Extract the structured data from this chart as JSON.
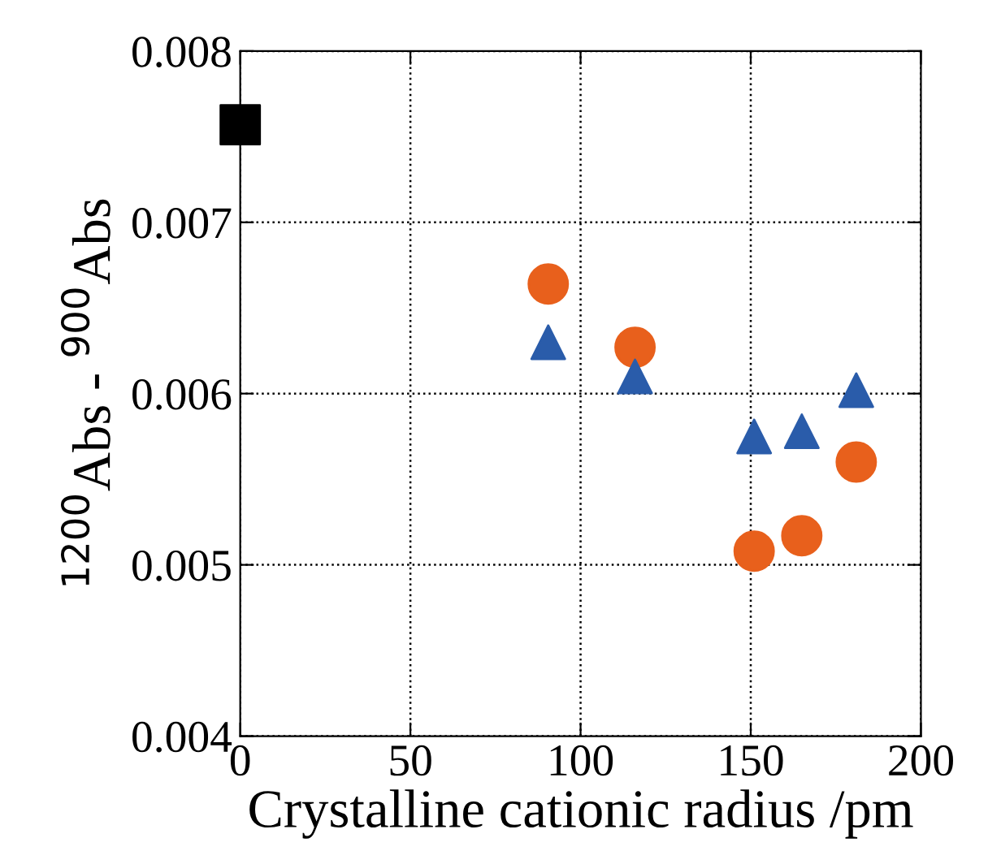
{
  "chart_data": {
    "type": "scatter",
    "xlabel": "Crystalline cationic radius /pm",
    "ylabel": "$^{1200}$Abs - $^{900}$Abs",
    "series": [
      {
        "color": "#000000",
        "marker": "square",
        "x": [
          0
        ],
        "values": [
          0.00757
        ]
      },
      {
        "color": "#e8601c",
        "marker": "circle",
        "x": [
          90.5,
          116,
          151,
          165,
          181
        ],
        "values": [
          0.00664,
          0.00627,
          0.00508,
          0.00517,
          0.0056
        ]
      },
      {
        "color": "#2a5caa",
        "marker": "triangle",
        "x": [
          90.5,
          116,
          151,
          165,
          181
        ],
        "values": [
          0.0063,
          0.0061,
          0.00575,
          0.00578,
          0.00602
        ]
      }
    ],
    "xlim": [
      0,
      200
    ],
    "xticks": [
      0,
      50,
      100,
      150,
      200
    ],
    "ylim": [
      0.004,
      0.008
    ],
    "yticks": [
      0.004,
      0.005,
      0.006,
      0.007,
      0.008
    ],
    "grid": true
  }
}
